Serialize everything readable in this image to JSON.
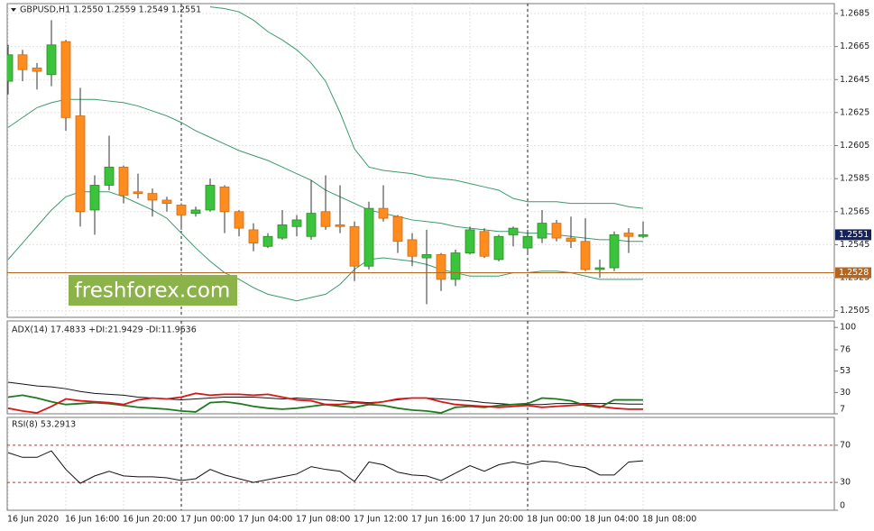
{
  "chart_data": [
    {
      "type": "candlestick",
      "title": "GBPUSD,H1  1.2550 1.2559 1.2549 1.2551",
      "categories": [
        "16 Jun 2020",
        null,
        null,
        null,
        "16 Jun 16:00",
        null,
        null,
        null,
        "16 Jun 20:00",
        null,
        null,
        null,
        "17 Jun 00:00",
        null,
        null,
        null,
        "17 Jun 04:00",
        null,
        null,
        null,
        "17 Jun 08:00",
        null,
        null,
        null,
        "17 Jun 12:00",
        null,
        null,
        null,
        "17 Jun 16:00",
        null,
        null,
        null,
        "17 Jun 20:00",
        null,
        null,
        null,
        "18 Jun 00:00",
        null,
        null,
        null,
        "18 Jun 04:00",
        null,
        null,
        null,
        "18 Jun 08:00"
      ],
      "open": [
        1.2644,
        1.266,
        1.2652,
        1.2648,
        1.2668,
        1.2623,
        1.2566,
        1.2581,
        1.2592,
        1.2577,
        1.2576,
        1.2572,
        1.2569,
        1.2564,
        1.2566,
        1.258,
        1.2565,
        1.2554,
        1.2544,
        1.2549,
        1.2556,
        1.255,
        1.2565,
        1.2557,
        1.2556,
        1.2532,
        1.2567,
        1.2562,
        1.2548,
        1.2537,
        1.2539,
        1.2524,
        1.254,
        1.2553,
        1.2536,
        1.2551,
        1.2543,
        1.2549,
        1.2558,
        1.2549,
        1.2547,
        1.253,
        1.2531,
        1.2552,
        1.255
      ],
      "high": [
        1.2666,
        1.2663,
        1.2655,
        1.2681,
        1.2669,
        1.264,
        1.2587,
        1.2611,
        1.2593,
        1.2588,
        1.2579,
        1.2574,
        1.257,
        1.2568,
        1.2585,
        1.2581,
        1.2566,
        1.2558,
        1.2552,
        1.2566,
        1.2563,
        1.2584,
        1.2587,
        1.2581,
        1.2559,
        1.2571,
        1.2581,
        1.2563,
        1.2552,
        1.2554,
        1.254,
        1.2542,
        1.2556,
        1.2555,
        1.2551,
        1.2556,
        1.2554,
        1.2566,
        1.256,
        1.2562,
        1.2561,
        1.2536,
        1.2553,
        1.2555,
        1.2559
      ],
      "low": [
        1.2636,
        1.2644,
        1.2639,
        1.2641,
        1.2614,
        1.2556,
        1.2551,
        1.2578,
        1.257,
        1.2573,
        1.2562,
        1.2565,
        1.2554,
        1.2562,
        1.2565,
        1.2552,
        1.255,
        1.2541,
        1.2543,
        1.2548,
        1.255,
        1.2548,
        1.2554,
        1.2552,
        1.2523,
        1.253,
        1.2559,
        1.254,
        1.2532,
        1.2509,
        1.2517,
        1.252,
        1.2539,
        1.2537,
        1.2535,
        1.2544,
        1.254,
        1.2546,
        1.2547,
        1.2543,
        1.2529,
        1.2525,
        1.2529,
        1.254,
        1.2549
      ],
      "close": [
        1.266,
        1.2651,
        1.265,
        1.2666,
        1.2622,
        1.2565,
        1.2581,
        1.2592,
        1.2575,
        1.2576,
        1.2572,
        1.257,
        1.2563,
        1.2566,
        1.2581,
        1.2565,
        1.2555,
        1.2546,
        1.255,
        1.2557,
        1.256,
        1.2564,
        1.2556,
        1.2556,
        1.2532,
        1.2567,
        1.2561,
        1.2547,
        1.2538,
        1.2539,
        1.2524,
        1.254,
        1.2554,
        1.2538,
        1.255,
        1.2555,
        1.255,
        1.2558,
        1.2549,
        1.2547,
        1.253,
        1.2531,
        1.2551,
        1.255,
        1.2551
      ],
      "up_color": "#3cc33c",
      "down_color": "#ff8c1e",
      "lines": [
        {
          "color": "#3a9a6a",
          "values": [
            null,
            null,
            null,
            null,
            null,
            null,
            null,
            null,
            null,
            null,
            null,
            null,
            null,
            null,
            1.2689,
            1.2688,
            1.2686,
            1.2681,
            1.2674,
            1.2669,
            1.2663,
            1.2655,
            1.2644,
            1.2625,
            1.2603,
            1.2592,
            1.259,
            1.2589,
            1.2588,
            1.2586,
            1.2585,
            1.2584,
            1.2582,
            1.258,
            1.2578,
            1.2573,
            1.2571,
            1.2571,
            1.2571,
            1.257,
            1.257,
            1.257,
            1.257,
            1.2568,
            1.2567
          ]
        },
        {
          "color": "#3a9a6a",
          "values": [
            1.2616,
            1.2622,
            1.2628,
            1.2631,
            1.2633,
            1.2633,
            1.2633,
            1.2632,
            1.2631,
            1.2629,
            1.2626,
            1.2623,
            1.2619,
            1.2614,
            1.261,
            1.2606,
            1.2602,
            1.2599,
            1.2596,
            1.2592,
            1.2588,
            1.2584,
            1.2578,
            1.2574,
            1.257,
            1.2566,
            1.2564,
            1.2562,
            1.256,
            1.2559,
            1.2558,
            1.2556,
            1.2555,
            1.2554,
            1.2553,
            1.2553,
            1.2552,
            1.2552,
            1.2551,
            1.255,
            1.2549,
            1.2548,
            1.2548,
            1.2547,
            1.2547
          ]
        },
        {
          "color": "#3a9a6a",
          "values": [
            1.2536,
            1.2546,
            1.2556,
            1.2566,
            1.2574,
            1.2577,
            1.2577,
            1.2577,
            1.2574,
            1.257,
            1.2566,
            1.2561,
            1.2552,
            1.2543,
            1.2535,
            1.2528,
            1.2524,
            1.2519,
            1.2515,
            1.2513,
            1.2511,
            1.2513,
            1.2515,
            1.2521,
            1.253,
            1.2536,
            1.2537,
            1.2536,
            1.2535,
            1.2533,
            1.253,
            1.2528,
            1.2526,
            1.2526,
            1.2526,
            1.2528,
            1.2528,
            1.2529,
            1.2529,
            1.2528,
            1.2526,
            1.2524,
            1.2524,
            1.2524,
            1.2524
          ]
        }
      ],
      "price_labels": [
        {
          "value": 1.2551,
          "color": "#14245a",
          "line": false
        },
        {
          "value": 1.2528,
          "color": "#b5651d",
          "line": true
        }
      ],
      "ylim": [
        1.2501,
        1.2691
      ],
      "yticks": [
        1.2685,
        1.2665,
        1.2645,
        1.2625,
        1.2605,
        1.2585,
        1.2565,
        1.2545,
        1.2525,
        1.2505
      ],
      "grid": true,
      "watermark": "freshforex.com"
    },
    {
      "type": "line",
      "title": "ADX(14) 17.4833 +DI:21.9429 -DI:11.9636",
      "series": [
        {
          "color": "#111111",
          "values": [
            41,
            39,
            37,
            36,
            34,
            31,
            29,
            28,
            27,
            25,
            24,
            23,
            22,
            23,
            24,
            25,
            25,
            25,
            24,
            23,
            24,
            23,
            22,
            21,
            20,
            19,
            20,
            22,
            24,
            24,
            23,
            22,
            21,
            19,
            18,
            17,
            17,
            17,
            18,
            18,
            18,
            18,
            18,
            17.5,
            17.48
          ]
        },
        {
          "color": "#1e7a1e",
          "values": [
            25,
            27,
            24,
            20,
            17,
            18,
            19,
            18,
            16,
            14,
            13,
            12,
            10,
            9,
            19,
            20,
            18,
            15,
            13,
            12,
            13,
            15,
            17,
            15,
            14,
            17,
            16,
            13,
            11,
            10,
            8,
            14,
            15,
            14,
            16,
            17,
            18,
            24,
            23,
            21,
            16,
            14,
            22,
            22,
            21.94
          ]
        },
        {
          "color": "#d81818",
          "values": [
            13,
            10,
            8,
            15,
            23,
            21,
            20,
            19,
            17,
            22,
            24,
            23,
            25,
            29,
            27,
            28,
            28,
            27,
            28,
            25,
            22,
            21,
            17,
            17,
            19,
            18,
            20,
            23,
            24,
            24,
            20,
            17,
            16,
            15,
            14,
            15,
            16,
            14,
            15,
            16,
            17,
            15,
            13,
            12,
            11.96
          ]
        }
      ],
      "ylim": [
        7,
        107
      ],
      "yticks": [
        100,
        76,
        53,
        30,
        7
      ],
      "grid": false
    },
    {
      "type": "line",
      "title": "RSI(8) 53.2913",
      "series": [
        {
          "color": "#111111",
          "values": [
            62,
            57,
            57,
            64,
            44,
            29,
            37,
            42,
            37,
            36,
            36,
            35,
            32,
            34,
            44,
            38,
            34,
            30,
            33,
            36,
            39,
            47,
            44,
            42,
            31,
            52,
            49,
            41,
            38,
            37,
            32,
            40,
            48,
            42,
            49,
            52,
            49,
            53,
            52,
            48,
            46,
            38,
            38,
            52,
            53.29
          ]
        }
      ],
      "levels": [
        70,
        30
      ],
      "levels_color": "#c03030",
      "ylim": [
        0,
        100
      ],
      "yticks": [
        70,
        30,
        0
      ],
      "grid": false
    }
  ]
}
